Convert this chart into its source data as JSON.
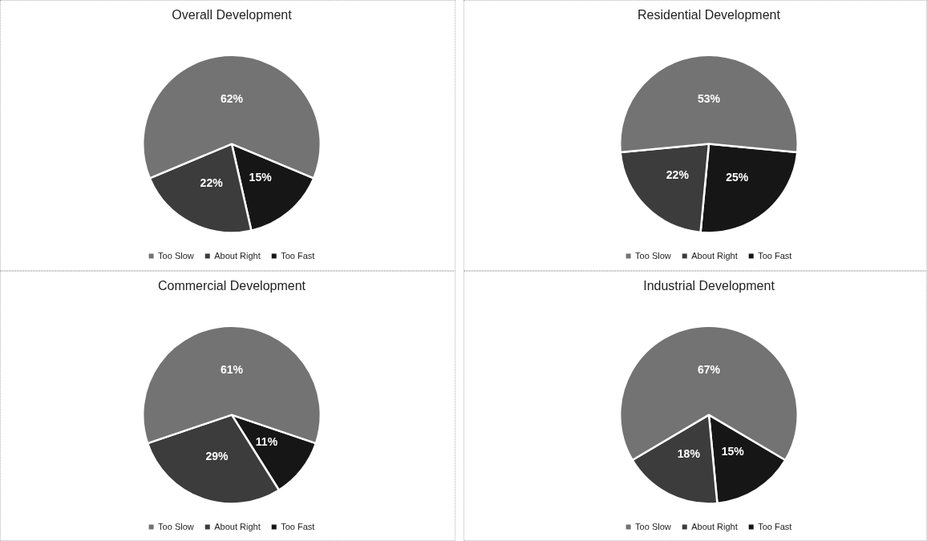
{
  "chart_data": [
    {
      "type": "pie",
      "title": "Overall Development",
      "categories": [
        "Too Slow",
        "About Right",
        "Too Fast"
      ],
      "values": [
        62,
        22,
        15
      ],
      "colors": [
        "#737373",
        "#3c3c3c",
        "#161616"
      ],
      "value_labels": [
        "62%",
        "22%",
        "15%"
      ],
      "legend": "bottom"
    },
    {
      "type": "pie",
      "title": "Residential Development",
      "categories": [
        "Too Slow",
        "About Right",
        "Too Fast"
      ],
      "values": [
        53,
        22,
        25
      ],
      "colors": [
        "#737373",
        "#3c3c3c",
        "#161616"
      ],
      "value_labels": [
        "53%",
        "22%",
        "25%"
      ],
      "legend": "bottom"
    },
    {
      "type": "pie",
      "title": "Commercial Development",
      "categories": [
        "Too Slow",
        "About Right",
        "Too Fast"
      ],
      "values": [
        61,
        29,
        11
      ],
      "colors": [
        "#737373",
        "#3c3c3c",
        "#161616"
      ],
      "value_labels": [
        "61%",
        "29%",
        "11%"
      ],
      "legend": "bottom"
    },
    {
      "type": "pie",
      "title": "Industrial Development",
      "categories": [
        "Too Slow",
        "About Right",
        "Too Fast"
      ],
      "values": [
        67,
        18,
        15
      ],
      "colors": [
        "#737373",
        "#3c3c3c",
        "#161616"
      ],
      "value_labels": [
        "67%",
        "18%",
        "15%"
      ],
      "legend": "bottom"
    }
  ]
}
